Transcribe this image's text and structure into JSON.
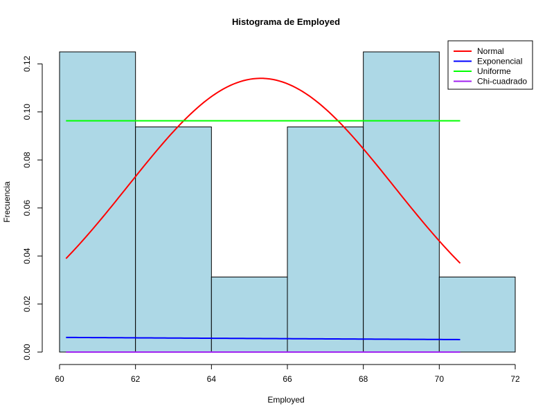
{
  "chart_data": {
    "type": "histogram",
    "title": "Histograma de Employed",
    "xlabel": "Employed",
    "ylabel": "Frecuencia",
    "xlim": [
      60,
      72
    ],
    "ylim": [
      0,
      0.125
    ],
    "x_ticks": [
      60,
      62,
      64,
      66,
      68,
      70,
      72
    ],
    "y_ticks": [
      0.0,
      0.02,
      0.04,
      0.06,
      0.08,
      0.1,
      0.12
    ],
    "y_tick_labels": [
      "0.00",
      "0.02",
      "0.04",
      "0.06",
      "0.08",
      "0.10",
      "0.12"
    ],
    "bin_fill": "#add8e6",
    "bins": [
      {
        "start": 60,
        "end": 62,
        "density": 0.125
      },
      {
        "start": 62,
        "end": 64,
        "density": 0.09375
      },
      {
        "start": 64,
        "end": 66,
        "density": 0.03125
      },
      {
        "start": 66,
        "end": 68,
        "density": 0.09375
      },
      {
        "start": 68,
        "end": 70,
        "density": 0.125
      },
      {
        "start": 70,
        "end": 72,
        "density": 0.03125
      }
    ],
    "curve_range": [
      60.17,
      70.55
    ],
    "series": [
      {
        "name": "Normal",
        "color": "#ff0000",
        "type": "normal",
        "mean": 65.3,
        "sd": 3.5
      },
      {
        "name": "Exponencial",
        "color": "#0000ff",
        "type": "exponential",
        "rate": 0.0153
      },
      {
        "name": "Uniforme",
        "color": "#00ff00",
        "type": "uniform",
        "value": 0.0963
      },
      {
        "name": "Chi-cuadrado",
        "color": "#a020f0",
        "type": "chisq",
        "value": 0.0
      }
    ],
    "legend_position": "top-right"
  }
}
